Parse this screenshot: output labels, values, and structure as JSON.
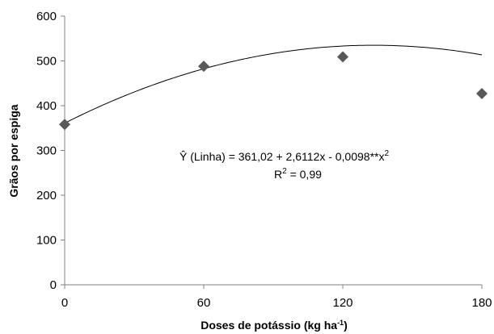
{
  "chart_data": {
    "type": "scatter",
    "xlabel": "Doses de potássio (kg ha",
    "xlabel_sup": "-1",
    "xlabel_close": ")",
    "ylabel": "Grãos por espiga",
    "xlim": [
      0,
      180
    ],
    "ylim": [
      0,
      600
    ],
    "xticks": [
      0,
      60,
      120,
      180
    ],
    "yticks": [
      0,
      100,
      200,
      300,
      400,
      500,
      600
    ],
    "xtick_labels": [
      "0",
      "60",
      "120",
      "180"
    ],
    "ytick_labels": [
      "0",
      "100",
      "200",
      "300",
      "400",
      "500",
      "600"
    ],
    "grid": false,
    "series": [
      {
        "x": [
          0,
          60,
          120,
          180
        ],
        "y": [
          358,
          488,
          509,
          427
        ],
        "marker": "diamond",
        "color": "#595959"
      }
    ],
    "fit": {
      "type": "quadratic",
      "a": 361.02,
      "b": 2.6112,
      "c": -0.0098,
      "color": "#000000"
    },
    "annotation": {
      "equation_main": "Ŷ (Linha) =  361,02 + 2,6112x  - 0,0098**x",
      "equation_sup": "2",
      "r2_main": "R",
      "r2_sup": "2",
      "r2_rest": " = 0,99"
    }
  }
}
